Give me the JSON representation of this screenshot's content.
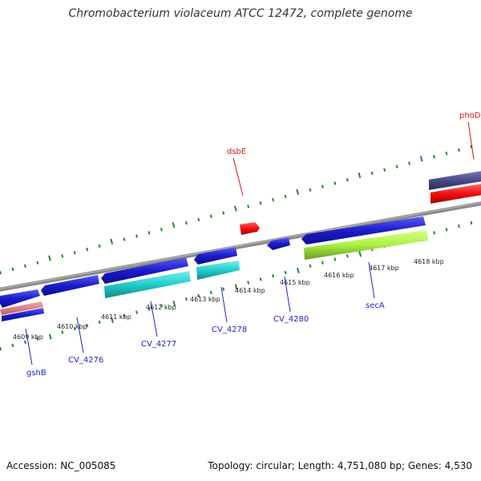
{
  "title": "Chromobacterium violaceum ATCC 12472, complete genome",
  "footer": {
    "accession": "Accession: NC_005085",
    "summary": "Topology: circular; Length: 4,751,080 bp; Genes: 4,530"
  },
  "scale_labels": [
    "4609 kbp",
    "4610 kbp",
    "4611 kbp",
    "4612 kbp",
    "4613 kbp",
    "4614 kbp",
    "4615 kbp",
    "4616 kbp",
    "4617 kbp",
    "4618 kbp"
  ],
  "gene_labels": [
    "gshB",
    "CV_4276",
    "CV_4277",
    "CV_4278",
    "CV_4280",
    "secA",
    "dsbE",
    "phoD"
  ],
  "colors": {
    "blue_gene": "#1c1ccc",
    "red_gene": "#ee1111",
    "cyan_gene": "#22cccc",
    "lime_gene": "#aaf044",
    "purple_gene": "#4a4a88",
    "pink_gene": "#e07a84",
    "backbone": "#8a8a8a",
    "ticks": "#228b22",
    "blue_label": "#2222cc",
    "red_label": "#dd1111"
  }
}
